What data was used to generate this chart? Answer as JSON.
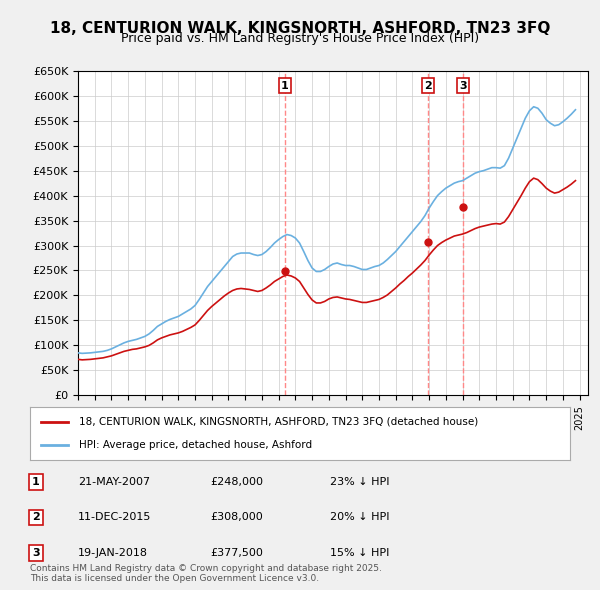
{
  "title": "18, CENTURION WALK, KINGSNORTH, ASHFORD, TN23 3FQ",
  "subtitle": "Price paid vs. HM Land Registry's House Price Index (HPI)",
  "ylabel_ticks": [
    "£0",
    "£50K",
    "£100K",
    "£150K",
    "£200K",
    "£250K",
    "£300K",
    "£350K",
    "£400K",
    "£450K",
    "£500K",
    "£550K",
    "£600K",
    "£650K"
  ],
  "ytick_values": [
    0,
    50000,
    100000,
    150000,
    200000,
    250000,
    300000,
    350000,
    400000,
    450000,
    500000,
    550000,
    600000,
    650000
  ],
  "ylim": [
    0,
    650000
  ],
  "xlim_start": 1995.0,
  "xlim_end": 2025.5,
  "hpi_color": "#6ab0e0",
  "price_color": "#cc1111",
  "sale_line_color": "#ff6666",
  "background_color": "#f0f0f0",
  "plot_bg_color": "#ffffff",
  "sales": [
    {
      "label": "1",
      "date": "21-MAY-2007",
      "price": 248000,
      "pct": "23%",
      "year": 2007.38
    },
    {
      "label": "2",
      "date": "11-DEC-2015",
      "price": 308000,
      "pct": "20%",
      "year": 2015.94
    },
    {
      "label": "3",
      "date": "19-JAN-2018",
      "price": 377500,
      "pct": "15%",
      "year": 2018.05
    }
  ],
  "legend_entries": [
    {
      "label": "18, CENTURION WALK, KINGSNORTH, ASHFORD, TN23 3FQ (detached house)",
      "color": "#cc1111"
    },
    {
      "label": "HPI: Average price, detached house, Ashford",
      "color": "#6ab0e0"
    }
  ],
  "footnote": "Contains HM Land Registry data © Crown copyright and database right 2025.\nThis data is licensed under the Open Government Licence v3.0.",
  "hpi_data": {
    "years": [
      1995.0,
      1995.25,
      1995.5,
      1995.75,
      1996.0,
      1996.25,
      1996.5,
      1996.75,
      1997.0,
      1997.25,
      1997.5,
      1997.75,
      1998.0,
      1998.25,
      1998.5,
      1998.75,
      1999.0,
      1999.25,
      1999.5,
      1999.75,
      2000.0,
      2000.25,
      2000.5,
      2000.75,
      2001.0,
      2001.25,
      2001.5,
      2001.75,
      2002.0,
      2002.25,
      2002.5,
      2002.75,
      2003.0,
      2003.25,
      2003.5,
      2003.75,
      2004.0,
      2004.25,
      2004.5,
      2004.75,
      2005.0,
      2005.25,
      2005.5,
      2005.75,
      2006.0,
      2006.25,
      2006.5,
      2006.75,
      2007.0,
      2007.25,
      2007.5,
      2007.75,
      2008.0,
      2008.25,
      2008.5,
      2008.75,
      2009.0,
      2009.25,
      2009.5,
      2009.75,
      2010.0,
      2010.25,
      2010.5,
      2010.75,
      2011.0,
      2011.25,
      2011.5,
      2011.75,
      2012.0,
      2012.25,
      2012.5,
      2012.75,
      2013.0,
      2013.25,
      2013.5,
      2013.75,
      2014.0,
      2014.25,
      2014.5,
      2014.75,
      2015.0,
      2015.25,
      2015.5,
      2015.75,
      2016.0,
      2016.25,
      2016.5,
      2016.75,
      2017.0,
      2017.25,
      2017.5,
      2017.75,
      2018.0,
      2018.25,
      2018.5,
      2018.75,
      2019.0,
      2019.25,
      2019.5,
      2019.75,
      2020.0,
      2020.25,
      2020.5,
      2020.75,
      2021.0,
      2021.25,
      2021.5,
      2021.75,
      2022.0,
      2022.25,
      2022.5,
      2022.75,
      2023.0,
      2023.25,
      2023.5,
      2023.75,
      2024.0,
      2024.25,
      2024.5,
      2024.75
    ],
    "values": [
      85000,
      84000,
      84500,
      85000,
      86000,
      87000,
      88000,
      90000,
      93000,
      97000,
      101000,
      105000,
      108000,
      110000,
      112000,
      115000,
      118000,
      123000,
      130000,
      138000,
      143000,
      148000,
      152000,
      155000,
      158000,
      163000,
      168000,
      173000,
      180000,
      192000,
      205000,
      218000,
      228000,
      238000,
      248000,
      258000,
      268000,
      278000,
      283000,
      285000,
      285000,
      285000,
      282000,
      280000,
      282000,
      288000,
      296000,
      305000,
      312000,
      318000,
      322000,
      320000,
      315000,
      305000,
      288000,
      270000,
      255000,
      248000,
      248000,
      252000,
      258000,
      263000,
      265000,
      262000,
      260000,
      260000,
      258000,
      255000,
      252000,
      252000,
      255000,
      258000,
      260000,
      265000,
      272000,
      280000,
      288000,
      298000,
      308000,
      318000,
      328000,
      338000,
      348000,
      360000,
      375000,
      388000,
      400000,
      408000,
      415000,
      420000,
      425000,
      428000,
      430000,
      435000,
      440000,
      445000,
      448000,
      450000,
      453000,
      456000,
      456000,
      455000,
      460000,
      475000,
      495000,
      515000,
      535000,
      555000,
      570000,
      578000,
      575000,
      565000,
      552000,
      545000,
      540000,
      542000,
      548000,
      555000,
      563000,
      572000
    ]
  },
  "price_data": {
    "years": [
      1995.0,
      1995.25,
      1995.5,
      1995.75,
      1996.0,
      1996.25,
      1996.5,
      1996.75,
      1997.0,
      1997.25,
      1997.5,
      1997.75,
      1998.0,
      1998.25,
      1998.5,
      1998.75,
      1999.0,
      1999.25,
      1999.5,
      1999.75,
      2000.0,
      2000.25,
      2000.5,
      2000.75,
      2001.0,
      2001.25,
      2001.5,
      2001.75,
      2002.0,
      2002.25,
      2002.5,
      2002.75,
      2003.0,
      2003.25,
      2003.5,
      2003.75,
      2004.0,
      2004.25,
      2004.5,
      2004.75,
      2005.0,
      2005.25,
      2005.5,
      2005.75,
      2006.0,
      2006.25,
      2006.5,
      2006.75,
      2007.0,
      2007.25,
      2007.5,
      2007.75,
      2008.0,
      2008.25,
      2008.5,
      2008.75,
      2009.0,
      2009.25,
      2009.5,
      2009.75,
      2010.0,
      2010.25,
      2010.5,
      2010.75,
      2011.0,
      2011.25,
      2011.5,
      2011.75,
      2012.0,
      2012.25,
      2012.5,
      2012.75,
      2013.0,
      2013.25,
      2013.5,
      2013.75,
      2014.0,
      2014.25,
      2014.5,
      2014.75,
      2015.0,
      2015.25,
      2015.5,
      2015.75,
      2016.0,
      2016.25,
      2016.5,
      2016.75,
      2017.0,
      2017.25,
      2017.5,
      2017.75,
      2018.0,
      2018.25,
      2018.5,
      2018.75,
      2019.0,
      2019.25,
      2019.5,
      2019.75,
      2020.0,
      2020.25,
      2020.5,
      2020.75,
      2021.0,
      2021.25,
      2021.5,
      2021.75,
      2022.0,
      2022.25,
      2022.5,
      2022.75,
      2023.0,
      2023.25,
      2023.5,
      2023.75,
      2024.0,
      2024.25,
      2024.5,
      2024.75
    ],
    "values": [
      72000,
      71000,
      71500,
      72000,
      73000,
      74000,
      75000,
      77000,
      79000,
      82000,
      85000,
      88000,
      90000,
      92000,
      93000,
      95000,
      97000,
      100000,
      105000,
      111000,
      115000,
      118000,
      121000,
      123000,
      125000,
      128000,
      132000,
      136000,
      141000,
      150000,
      160000,
      170000,
      178000,
      185000,
      192000,
      199000,
      205000,
      210000,
      213000,
      214000,
      213000,
      212000,
      210000,
      208000,
      210000,
      215000,
      221000,
      228000,
      233000,
      238000,
      241000,
      239000,
      235000,
      228000,
      215000,
      202000,
      191000,
      185000,
      185000,
      188000,
      193000,
      196000,
      197000,
      195000,
      193000,
      192000,
      190000,
      188000,
      186000,
      186000,
      188000,
      190000,
      192000,
      196000,
      201000,
      208000,
      215000,
      223000,
      230000,
      238000,
      245000,
      253000,
      261000,
      270000,
      281000,
      291000,
      300000,
      306000,
      311000,
      315000,
      319000,
      321000,
      323000,
      326000,
      330000,
      334000,
      337000,
      339000,
      341000,
      343000,
      344000,
      343000,
      347000,
      358000,
      372000,
      386000,
      400000,
      415000,
      428000,
      435000,
      432000,
      424000,
      415000,
      409000,
      405000,
      407000,
      412000,
      417000,
      423000,
      430000
    ]
  }
}
